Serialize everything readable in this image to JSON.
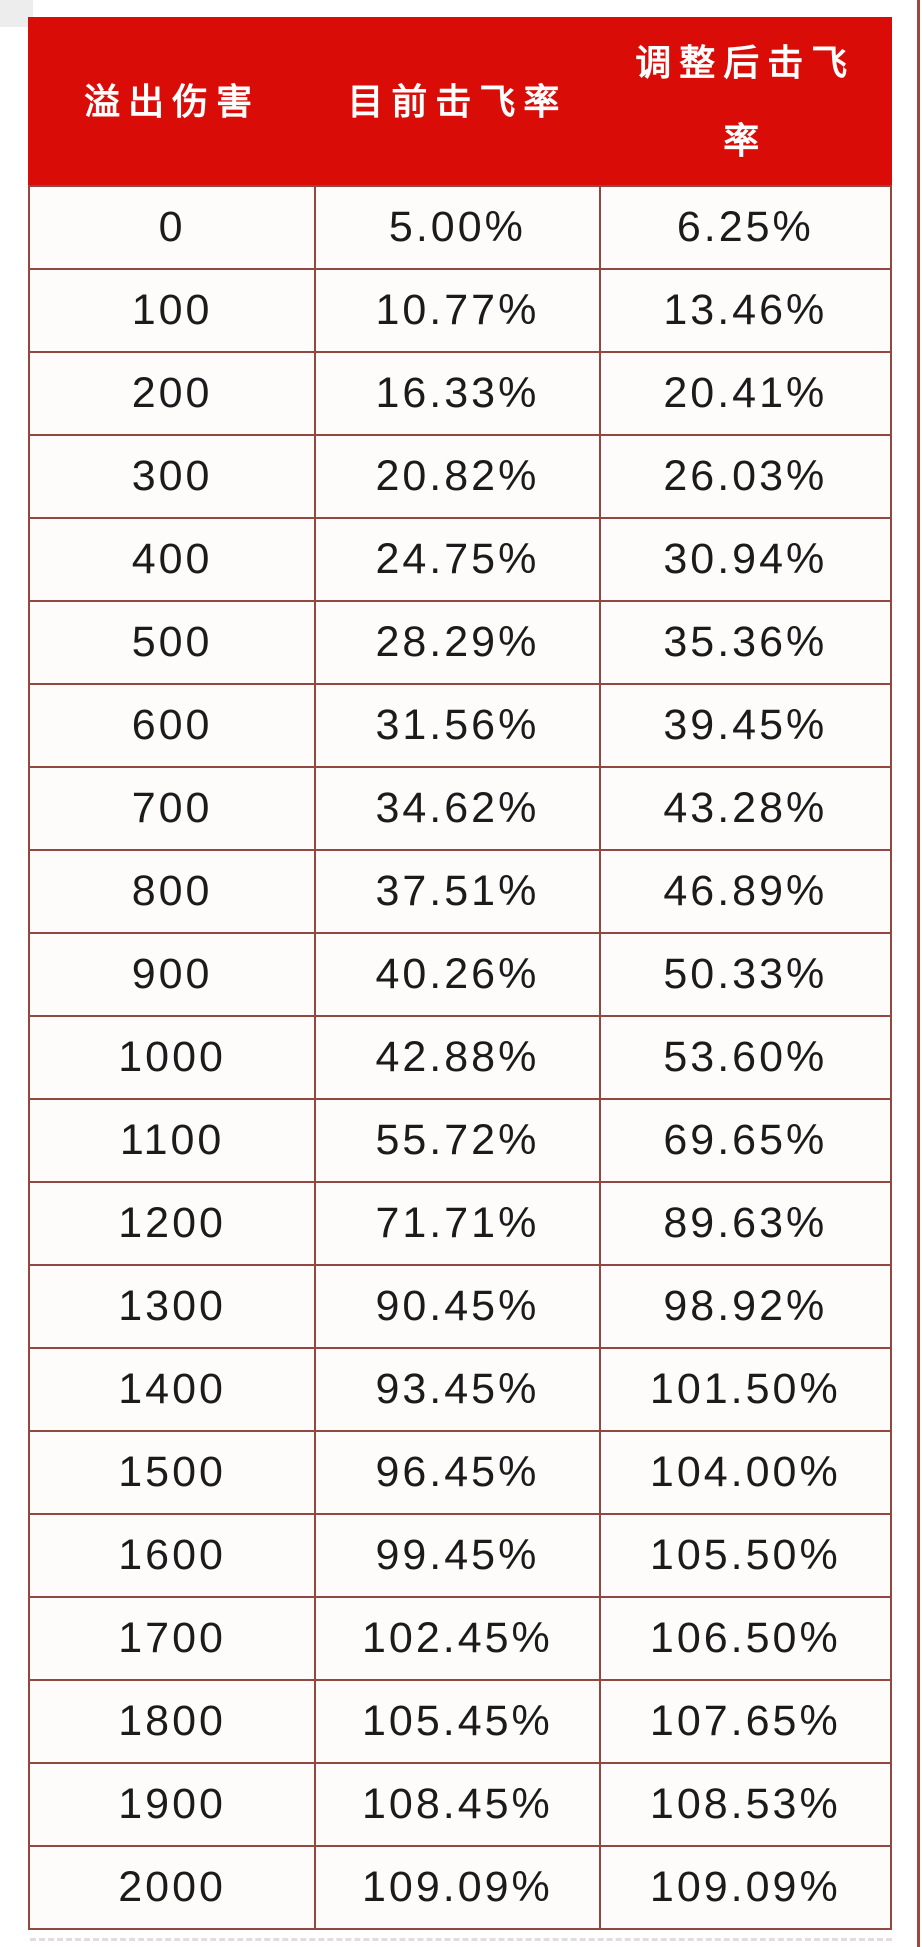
{
  "colors": {
    "header_bg": "#da0c08",
    "header_text": "#ffffff",
    "grid_border": "#924741",
    "cell_bg": "#fdfcfb",
    "cell_text": "#1b1b1b",
    "page_bg": "#ffffff"
  },
  "chart_data": {
    "type": "table",
    "columns": [
      "溢出伤害",
      "目前击飞率",
      "调整后击飞率"
    ],
    "rows": [
      [
        "0",
        "5.00%",
        "6.25%"
      ],
      [
        "100",
        "10.77%",
        "13.46%"
      ],
      [
        "200",
        "16.33%",
        "20.41%"
      ],
      [
        "300",
        "20.82%",
        "26.03%"
      ],
      [
        "400",
        "24.75%",
        "30.94%"
      ],
      [
        "500",
        "28.29%",
        "35.36%"
      ],
      [
        "600",
        "31.56%",
        "39.45%"
      ],
      [
        "700",
        "34.62%",
        "43.28%"
      ],
      [
        "800",
        "37.51%",
        "46.89%"
      ],
      [
        "900",
        "40.26%",
        "50.33%"
      ],
      [
        "1000",
        "42.88%",
        "53.60%"
      ],
      [
        "1100",
        "55.72%",
        "69.65%"
      ],
      [
        "1200",
        "71.71%",
        "89.63%"
      ],
      [
        "1300",
        "90.45%",
        "98.92%"
      ],
      [
        "1400",
        "93.45%",
        "101.50%"
      ],
      [
        "1500",
        "96.45%",
        "104.00%"
      ],
      [
        "1600",
        "99.45%",
        "105.50%"
      ],
      [
        "1700",
        "102.45%",
        "106.50%"
      ],
      [
        "1800",
        "105.45%",
        "107.65%"
      ],
      [
        "1900",
        "108.45%",
        "108.53%"
      ],
      [
        "2000",
        "109.09%",
        "109.09%"
      ]
    ]
  }
}
